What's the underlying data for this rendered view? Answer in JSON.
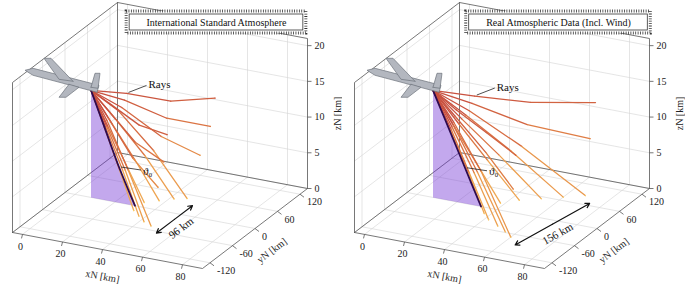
{
  "chart_data": [
    {
      "type": "line3d",
      "title": "International Standard Atmosphere",
      "xlabel": "xN [km]",
      "ylabel": "yN [km]",
      "zlabel": "zN [km]",
      "xlim": [
        -5,
        90
      ],
      "ylim": [
        -140,
        140
      ],
      "zlim": [
        0,
        21
      ],
      "xticks": [
        0,
        20,
        40,
        60,
        80
      ],
      "yticks": [
        -120,
        -60,
        0,
        60,
        120
      ],
      "zticks": [
        0,
        5,
        10,
        15,
        20
      ],
      "grid": true,
      "annotations": {
        "rays": "Rays",
        "theta0": "ϑ₀"
      },
      "theta0_ray": [
        [
          8,
          0,
          15
        ],
        [
          15,
          0,
          10
        ],
        [
          22,
          0,
          5
        ],
        [
          30,
          0,
          0
        ]
      ],
      "rays": [
        [
          [
            8,
            0,
            15
          ],
          [
            16,
            4,
            10
          ],
          [
            24,
            9,
            5
          ],
          [
            32,
            14,
            0
          ]
        ],
        [
          [
            8,
            0,
            15
          ],
          [
            17,
            8,
            10.5
          ],
          [
            27,
            17,
            5.5
          ],
          [
            37,
            27,
            0
          ]
        ],
        [
          [
            8,
            0,
            15
          ],
          [
            18,
            12,
            11
          ],
          [
            30,
            26,
            6
          ],
          [
            42,
            40,
            0
          ]
        ],
        [
          [
            8,
            0,
            15
          ],
          [
            19,
            16,
            12
          ],
          [
            33,
            34,
            6.5
          ],
          [
            47,
            48,
            0
          ]
        ],
        [
          [
            8,
            0,
            15
          ],
          [
            20,
            18,
            12.5
          ],
          [
            36,
            38,
            8.5
          ],
          [
            52,
            56,
            6
          ]
        ],
        [
          [
            8,
            0,
            15
          ],
          [
            21,
            20,
            13.5
          ],
          [
            38,
            42,
            11
          ],
          [
            56,
            62,
            10
          ]
        ],
        [
          [
            8,
            0,
            15
          ],
          [
            22,
            20,
            14.5
          ],
          [
            40,
            42,
            13.5
          ],
          [
            58,
            64,
            14
          ]
        ],
        [
          [
            8,
            0,
            15
          ],
          [
            16,
            -4,
            10
          ],
          [
            24,
            -9,
            5
          ],
          [
            32,
            -14,
            0
          ]
        ],
        [
          [
            8,
            0,
            15
          ],
          [
            17,
            -8,
            10.5
          ],
          [
            27,
            -17,
            5.5
          ],
          [
            37,
            -27,
            0
          ]
        ],
        [
          [
            8,
            0,
            15
          ],
          [
            18,
            -12,
            11
          ],
          [
            30,
            -26,
            6
          ],
          [
            42,
            -40,
            0
          ]
        ],
        [
          [
            8,
            0,
            15
          ],
          [
            19,
            -16,
            12
          ],
          [
            33,
            -34,
            6.5
          ],
          [
            47,
            -48,
            0
          ]
        ],
        [
          [
            8,
            0,
            15
          ],
          [
            20,
            -18,
            12.5
          ],
          [
            36,
            -38,
            8.5
          ],
          [
            52,
            -56,
            6
          ]
        ],
        [
          [
            8,
            0,
            15
          ],
          [
            21,
            -20,
            13.5
          ],
          [
            38,
            -42,
            11
          ],
          [
            56,
            -62,
            10
          ]
        ],
        [
          [
            8,
            0,
            15
          ],
          [
            22,
            -20,
            14.5
          ],
          [
            40,
            -42,
            13.5
          ],
          [
            58,
            -64,
            14
          ]
        ]
      ],
      "distance": {
        "label": "96 km",
        "from": [
          47,
          -48,
          0
        ],
        "to": [
          47,
          48,
          0
        ]
      }
    },
    {
      "type": "line3d",
      "title": "Real Atmospheric Data (Incl. Wind)",
      "xlabel": "xN [km]",
      "ylabel": "yN [km]",
      "zlabel": "zN [km]",
      "xlim": [
        -5,
        90
      ],
      "ylim": [
        -140,
        140
      ],
      "zlim": [
        0,
        21
      ],
      "xticks": [
        0,
        20,
        40,
        60,
        80
      ],
      "yticks": [
        -120,
        -60,
        0,
        60,
        120
      ],
      "zticks": [
        0,
        5,
        10,
        15,
        20
      ],
      "grid": true,
      "annotations": {
        "rays": "Rays",
        "theta0": "ϑ₀"
      },
      "theta0_ray": [
        [
          8,
          0,
          15
        ],
        [
          16,
          0,
          10
        ],
        [
          24,
          0,
          5
        ],
        [
          32,
          0,
          0
        ]
      ],
      "rays": [
        [
          [
            8,
            0,
            15
          ],
          [
            18,
            6,
            10
          ],
          [
            28,
            13,
            5
          ],
          [
            38,
            20,
            0
          ]
        ],
        [
          [
            8,
            0,
            15
          ],
          [
            19,
            10,
            10.5
          ],
          [
            31,
            23,
            5.5
          ],
          [
            44,
            38,
            0
          ]
        ],
        [
          [
            8,
            0,
            15
          ],
          [
            20,
            14,
            11
          ],
          [
            35,
            33,
            6
          ],
          [
            52,
            54,
            0
          ]
        ],
        [
          [
            8,
            0,
            15
          ],
          [
            21,
            18,
            11.5
          ],
          [
            39,
            42,
            6.5
          ],
          [
            60,
            70,
            0
          ]
        ],
        [
          [
            8,
            0,
            15
          ],
          [
            22,
            22,
            12
          ],
          [
            43,
            50,
            7
          ],
          [
            68,
            86,
            0
          ]
        ],
        [
          [
            8,
            0,
            15
          ],
          [
            23,
            24,
            13
          ],
          [
            45,
            54,
            10
          ],
          [
            70,
            88,
            8
          ]
        ],
        [
          [
            8,
            0,
            15
          ],
          [
            24,
            26,
            14
          ],
          [
            46,
            58,
            13
          ],
          [
            72,
            92,
            13
          ]
        ],
        [
          [
            8,
            0,
            15
          ],
          [
            18,
            -6,
            10
          ],
          [
            28,
            -12,
            5
          ],
          [
            37,
            -18,
            0
          ]
        ],
        [
          [
            8,
            0,
            15
          ],
          [
            19,
            -10,
            10.5
          ],
          [
            30,
            -21,
            5.5
          ],
          [
            42,
            -33,
            0
          ]
        ],
        [
          [
            8,
            0,
            15
          ],
          [
            20,
            -13,
            11
          ],
          [
            34,
            -29,
            6
          ],
          [
            49,
            -46,
            0
          ]
        ],
        [
          [
            8,
            0,
            15
          ],
          [
            21,
            -16,
            11.5
          ],
          [
            37,
            -36,
            6.5
          ],
          [
            55,
            -58,
            0
          ]
        ],
        [
          [
            8,
            0,
            15
          ],
          [
            22,
            -19,
            12
          ],
          [
            40,
            -42,
            7
          ],
          [
            60,
            -70,
            0
          ]
        ],
        [
          [
            8,
            0,
            15
          ],
          [
            23,
            -21,
            13
          ],
          [
            43,
            -46,
            10
          ],
          [
            62,
            -74,
            7
          ]
        ],
        [
          [
            8,
            0,
            15
          ],
          [
            24,
            -23,
            14
          ],
          [
            44,
            -50,
            13
          ],
          [
            64,
            -78,
            12
          ]
        ]
      ],
      "distance": {
        "label": "156 km",
        "from": [
          60,
          -70,
          0
        ],
        "to": [
          68,
          86,
          0
        ]
      }
    }
  ]
}
